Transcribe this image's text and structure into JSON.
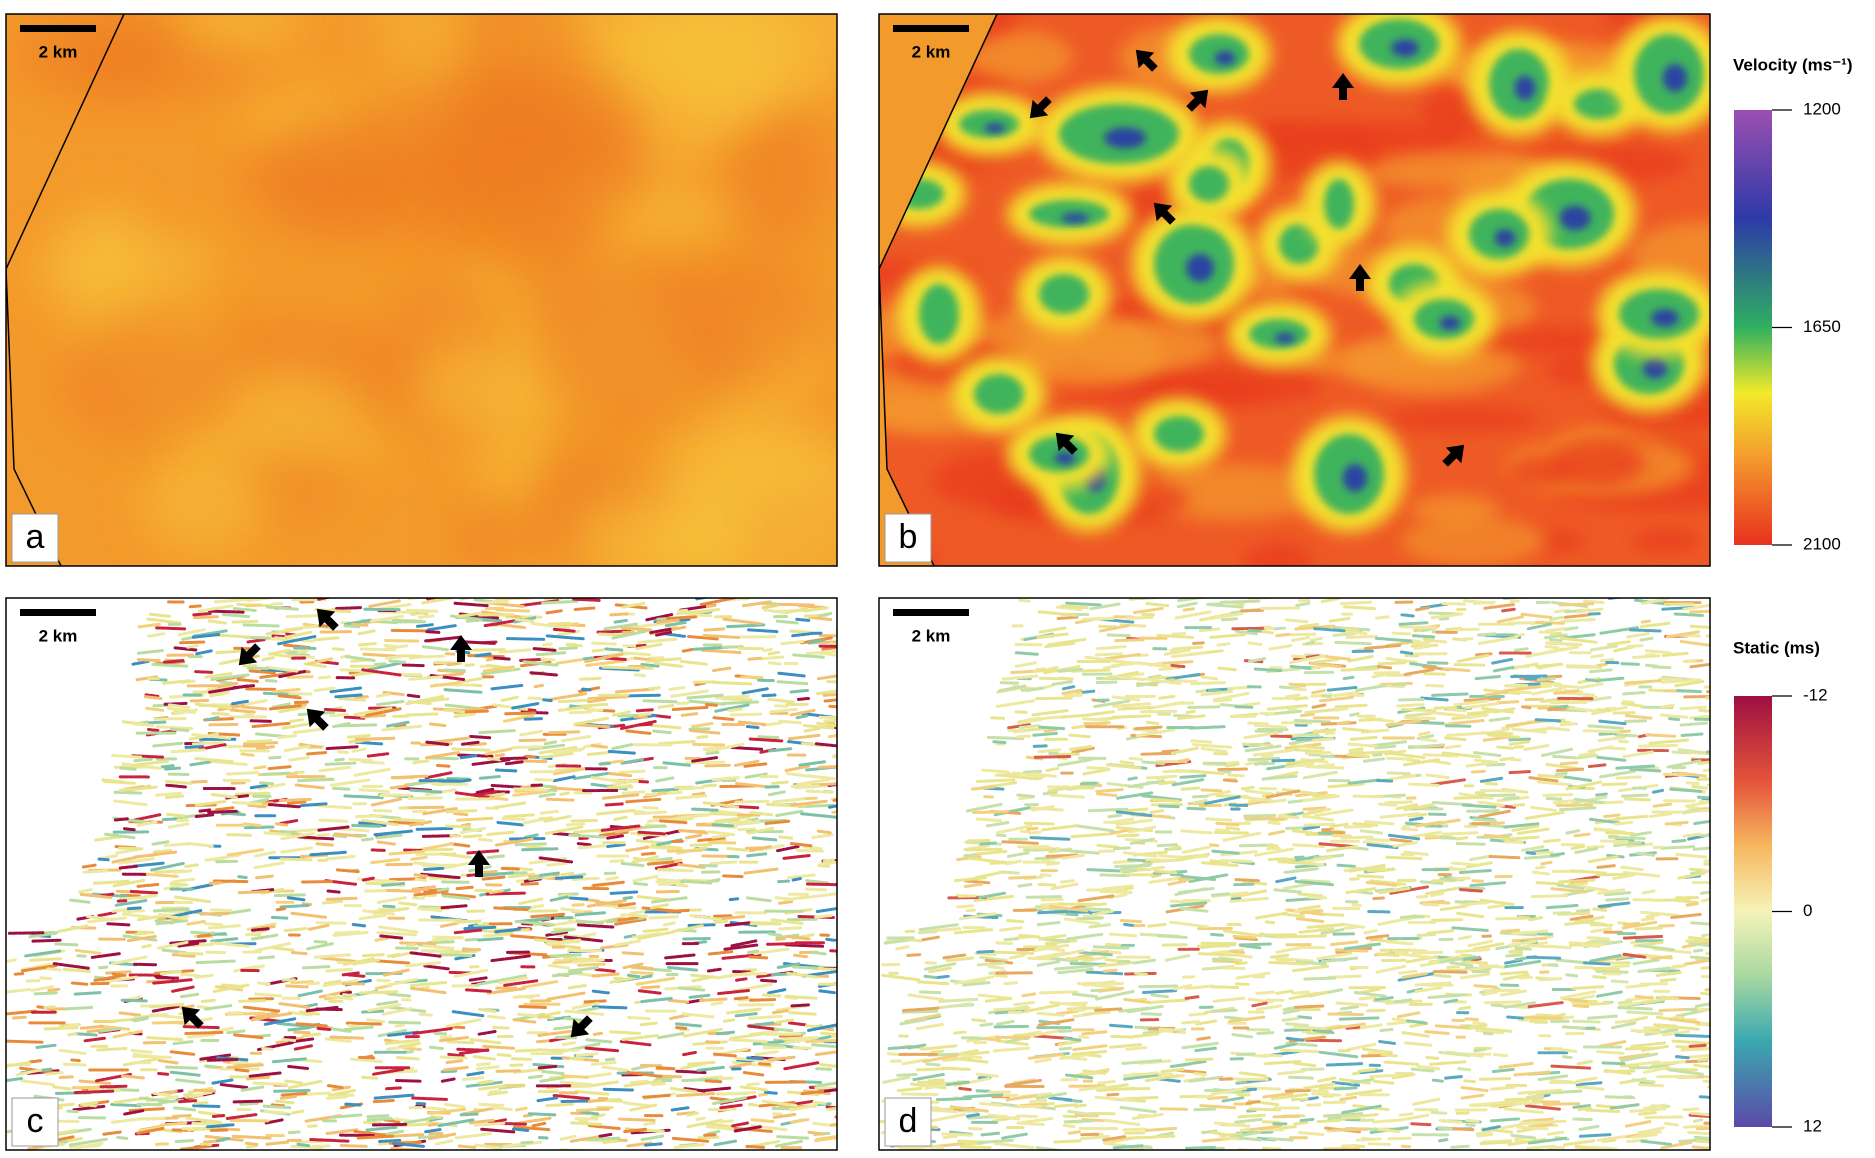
{
  "panels": [
    {
      "label": "a",
      "scale_bar": "2 km"
    },
    {
      "label": "b",
      "scale_bar": "2 km"
    },
    {
      "label": "c",
      "scale_bar": "2 km"
    },
    {
      "label": "d",
      "scale_bar": "2 km"
    }
  ],
  "velocity_colorbar": {
    "title": "Velocity (ms⁻¹)",
    "lim": [
      1200,
      2100
    ],
    "ticks": [
      1200,
      1650,
      2100
    ]
  },
  "static_colorbar": {
    "title": "Static (ms)",
    "lim": [
      -12,
      12
    ],
    "ticks": [
      -12,
      0,
      12
    ]
  }
}
